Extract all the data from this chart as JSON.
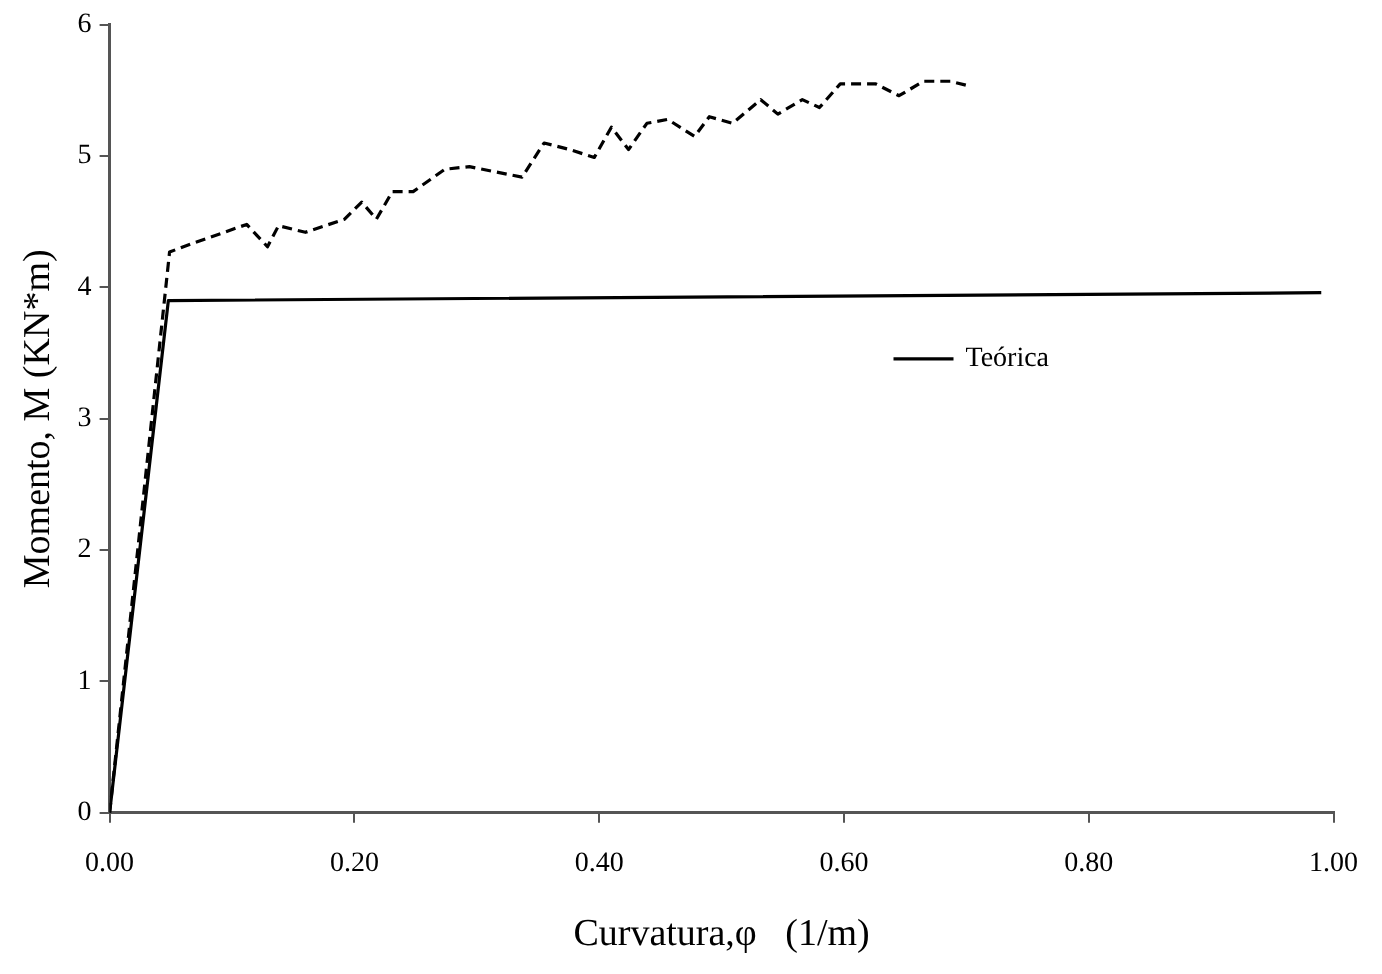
{
  "chart_data": {
    "type": "line",
    "xlabel": "Curvatura,φ   (1/m)",
    "ylabel": "Momento, M (KN*m)",
    "xlim": [
      0,
      1
    ],
    "xticks": [
      {
        "value": 0,
        "label": "0.00"
      },
      {
        "value": 0.2,
        "label": "0.20"
      },
      {
        "value": 0.4,
        "label": "0.40"
      },
      {
        "value": 0.6,
        "label": "0.60"
      },
      {
        "value": 0.8,
        "label": "0.80"
      },
      {
        "value": 1,
        "label": "1.00"
      }
    ],
    "ylim": [
      0,
      6
    ],
    "yticks": [
      0,
      1,
      2,
      3,
      4,
      5,
      6
    ],
    "grid": false,
    "legend": "right",
    "marker": "none",
    "series": [
      {
        "name": "Teórica",
        "color": "#000000",
        "line_style": "solid",
        "x": [
          0,
          0.048,
          0.99
        ],
        "values": [
          0,
          3.9,
          3.96
        ]
      },
      {
        "color": "#000000",
        "line_style": "dashed",
        "x": [
          0,
          0.049,
          0.066,
          0.112,
          0.129,
          0.138,
          0.16,
          0.192,
          0.206,
          0.218,
          0.231,
          0.248,
          0.274,
          0.294,
          0.337,
          0.355,
          0.376,
          0.396,
          0.41,
          0.424,
          0.439,
          0.456,
          0.478,
          0.49,
          0.509,
          0.532,
          0.546,
          0.566,
          0.58,
          0.597,
          0.626,
          0.645,
          0.665,
          0.687,
          0.704
        ],
        "values": [
          0,
          4.27,
          4.33,
          4.48,
          4.31,
          4.47,
          4.42,
          4.52,
          4.65,
          4.52,
          4.73,
          4.73,
          4.9,
          4.92,
          4.84,
          5.1,
          5.05,
          4.99,
          5.22,
          5.05,
          5.25,
          5.28,
          5.15,
          5.3,
          5.25,
          5.43,
          5.32,
          5.43,
          5.37,
          5.55,
          5.55,
          5.46,
          5.57,
          5.57,
          5.53
        ]
      }
    ]
  }
}
